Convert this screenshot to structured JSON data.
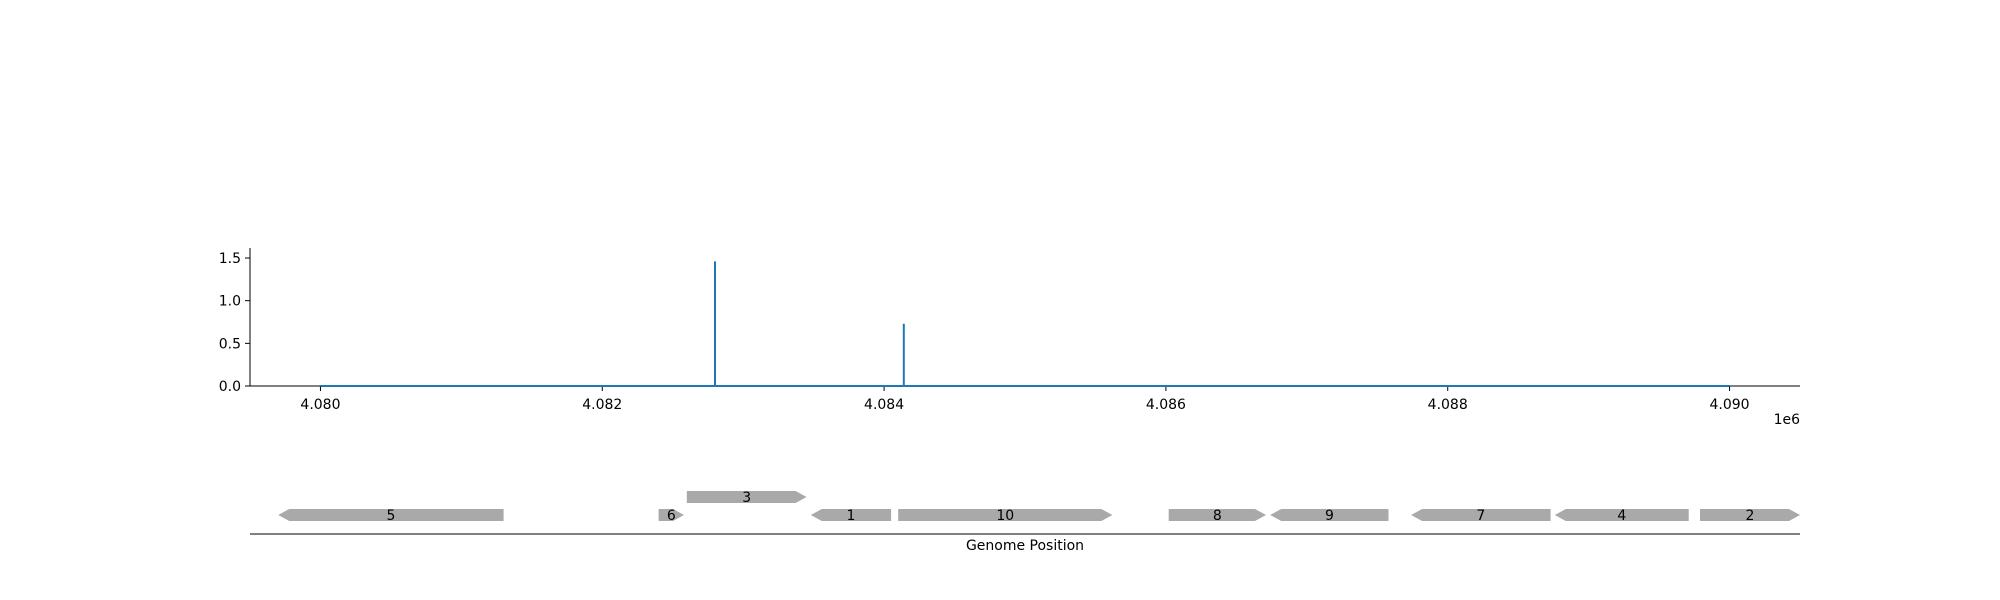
{
  "chart_data": [
    {
      "type": "line",
      "title": "",
      "xlabel": "",
      "ylabel": "",
      "x_offset_label": "1e6",
      "xlim": [
        4079500,
        4090500
      ],
      "ylim": [
        0,
        1.6
      ],
      "xticks": [
        4080000,
        4082000,
        4084000,
        4086000,
        4088000,
        4090000
      ],
      "xtick_labels": [
        "4.080",
        "4.082",
        "4.084",
        "4.086",
        "4.088",
        "4.090"
      ],
      "yticks": [
        0,
        0.5,
        1.0,
        1.5
      ],
      "ytick_labels": [
        "0.0",
        "0.5",
        "1.0",
        "1.5"
      ],
      "grid": false,
      "legend": "none",
      "series": [
        {
          "color": "#1f77b4",
          "x": [
            4080000,
            4082800,
            4082800,
            4082800,
            4084140,
            4084140,
            4084140,
            4090000
          ],
          "y": [
            0,
            0,
            1.46,
            0,
            0,
            0.73,
            0,
            0
          ]
        }
      ]
    },
    {
      "type": "gene-track",
      "xlabel": "Genome Position",
      "xlim": [
        4079500,
        4090500
      ],
      "color": "#a9a9a9",
      "genes": [
        {
          "label": "5",
          "start": 4079700,
          "end": 4081300,
          "strand": "-",
          "row": 0
        },
        {
          "label": "6",
          "start": 4082400,
          "end": 4082580,
          "strand": "+",
          "row": 0
        },
        {
          "label": "3",
          "start": 4082600,
          "end": 4083450,
          "strand": "+",
          "row": 1
        },
        {
          "label": "1",
          "start": 4083480,
          "end": 4084050,
          "strand": "-",
          "row": 0
        },
        {
          "label": "10",
          "start": 4084100,
          "end": 4085620,
          "strand": "+",
          "row": 0
        },
        {
          "label": "8",
          "start": 4086020,
          "end": 4086710,
          "strand": "+",
          "row": 0
        },
        {
          "label": "9",
          "start": 4086740,
          "end": 4087580,
          "strand": "-",
          "row": 0
        },
        {
          "label": "7",
          "start": 4087740,
          "end": 4088730,
          "strand": "-",
          "row": 0
        },
        {
          "label": "4",
          "start": 4088760,
          "end": 4089710,
          "strand": "-",
          "row": 0
        },
        {
          "label": "2",
          "start": 4089790,
          "end": 4090500,
          "strand": "+",
          "row": 0
        }
      ]
    }
  ]
}
